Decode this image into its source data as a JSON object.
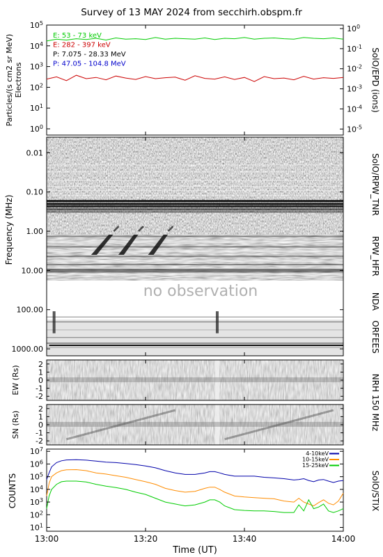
{
  "title": "Survey of 13 MAY 2024 from secchirh.obspm.fr",
  "x_axis": {
    "label": "Time (UT)",
    "ticks": [
      "13:00",
      "13:20",
      "13:40",
      "14:00"
    ]
  },
  "no_observation_text": "no observation",
  "panels": {
    "epd": {
      "left_label": [
        "Particles/(s cm2 sr MeV)",
        "Electrons"
      ],
      "right_label": "SolO/EPD (ions)"
    },
    "rpw": {
      "left_label": "Frequency (MHz)",
      "right_label_tnr": "SolO/RPW_TNR",
      "right_label_hfr": "RPW_HFR"
    },
    "nda": {
      "right_label": "NDA"
    },
    "orfees": {
      "right_label": "ORFEES"
    },
    "nrh": {
      "ew_label": "EW (Rs)",
      "sn_label": "SN (Rs)",
      "right_label": "NRH 150 MHz"
    },
    "stix": {
      "left_label": "COUNTS",
      "right_label": "SolO/STIX"
    }
  },
  "chart_data": [
    {
      "type": "line",
      "name": "epd",
      "ylog": true,
      "ylim": [
        0.5,
        100000
      ],
      "y_ticks": [
        {
          "base": "10",
          "exp": "5",
          "value": 100000
        },
        {
          "base": "10",
          "exp": "4",
          "value": 10000
        },
        {
          "base": "10",
          "exp": "3",
          "value": 1000
        },
        {
          "base": "10",
          "exp": "2",
          "value": 100
        },
        {
          "base": "10",
          "exp": "1",
          "value": 10
        },
        {
          "base": "10",
          "exp": "0",
          "value": 1
        }
      ],
      "y2_ticks": [
        {
          "base": "10",
          "exp": "0",
          "value": 1
        },
        {
          "base": "10",
          "exp": "-1",
          "value": 0.1
        },
        {
          "base": "10",
          "exp": "-2",
          "value": 0.01
        },
        {
          "base": "10",
          "exp": "-3",
          "value": 0.001
        },
        {
          "base": "10",
          "exp": "-4",
          "value": 0.0001
        },
        {
          "base": "10",
          "exp": "-5",
          "value": 1e-05
        }
      ],
      "legend": [
        {
          "text": "E: 53 - 73 keV",
          "color": "#00cc00"
        },
        {
          "text": "E: 282 - 397 keV",
          "color": "#cc0000"
        },
        {
          "text": "P: 7.075 - 28.33 MeV",
          "color": "#000000"
        },
        {
          "text": "P: 47.05 - 104.8 MeV",
          "color": "#0000cc"
        }
      ],
      "series": [
        {
          "color": "#00cc00",
          "x": [
            0,
            2,
            4,
            6,
            8,
            10,
            12,
            14,
            16,
            18,
            20,
            22,
            24,
            26,
            28,
            30,
            32,
            34,
            36,
            38,
            40,
            42,
            44,
            46,
            48,
            50,
            52,
            54,
            56,
            58,
            60
          ],
          "values": [
            17000,
            21000,
            19000,
            22000,
            20000,
            23000,
            19000,
            24000,
            21000,
            22000,
            20000,
            25000,
            21000,
            23000,
            22000,
            21000,
            24000,
            20000,
            23000,
            22000,
            25000,
            21000,
            23000,
            24000,
            22000,
            21000,
            25000,
            23000,
            22000,
            24000,
            21000
          ]
        },
        {
          "color": "#cc0000",
          "x": [
            0,
            2,
            4,
            6,
            8,
            10,
            12,
            14,
            16,
            18,
            20,
            22,
            24,
            26,
            28,
            30,
            32,
            34,
            36,
            38,
            40,
            42,
            44,
            46,
            48,
            50,
            52,
            54,
            56,
            58,
            60
          ],
          "values": [
            250,
            320,
            210,
            380,
            260,
            300,
            230,
            350,
            280,
            240,
            330,
            260,
            290,
            310,
            220,
            360,
            270,
            250,
            320,
            240,
            300,
            190,
            330,
            260,
            280,
            230,
            340,
            250,
            290,
            270,
            300
          ]
        }
      ]
    },
    {
      "type": "heatmap",
      "name": "rpw-nda-orfees",
      "ylog": true,
      "yreverse": true,
      "ylim": [
        0.004,
        1500
      ],
      "y_ticks": [
        {
          "text": "0.01",
          "value": 0.01
        },
        {
          "text": "0.10",
          "value": 0.1
        },
        {
          "text": "1.00",
          "value": 1
        },
        {
          "text": "10.00",
          "value": 10
        },
        {
          "text": "100.00",
          "value": 100
        },
        {
          "text": "1000.00",
          "value": 1000
        }
      ],
      "bands": {
        "tnr": [
          0.004,
          0.9
        ],
        "hfr": [
          0.9,
          13
        ],
        "nda": [
          13,
          70
        ],
        "orfees": [
          70,
          1500
        ]
      },
      "bursts": [
        {
          "t_start": 9.0,
          "t_end": 14.0,
          "f_high": 1.0,
          "f_low": 4.0
        },
        {
          "t_start": 14.5,
          "t_end": 19.0,
          "f_high": 1.0,
          "f_low": 4.0
        },
        {
          "t_start": 20.5,
          "t_end": 25.0,
          "f_high": 1.0,
          "f_low": 4.0
        }
      ],
      "orfees_events": [
        {
          "t": 1.5
        },
        {
          "t": 34.5
        }
      ]
    },
    {
      "type": "heatmap",
      "name": "nrh-ew",
      "ylim": [
        -2.5,
        2.5
      ],
      "y_ticks": [
        {
          "text": "2",
          "value": 2
        },
        {
          "text": "1",
          "value": 1
        },
        {
          "text": "0",
          "value": 0
        },
        {
          "text": "-1",
          "value": -1
        },
        {
          "text": "-2",
          "value": -2
        }
      ],
      "gap_t": 34.5
    },
    {
      "type": "heatmap",
      "name": "nrh-sn",
      "ylim": [
        -2.5,
        2.5
      ],
      "y_ticks": [
        {
          "text": "2",
          "value": 2
        },
        {
          "text": "1",
          "value": 1
        },
        {
          "text": "0",
          "value": 0
        },
        {
          "text": "-1",
          "value": -1
        },
        {
          "text": "-2",
          "value": -2
        }
      ],
      "gap_t": 34.5
    },
    {
      "type": "line",
      "name": "stix",
      "ylog": true,
      "ylim": [
        5,
        15000000
      ],
      "y_ticks": [
        {
          "base": "10",
          "exp": "7",
          "value": 10000000
        },
        {
          "base": "10",
          "exp": "6",
          "value": 1000000
        },
        {
          "base": "10",
          "exp": "5",
          "value": 100000
        },
        {
          "base": "10",
          "exp": "4",
          "value": 10000
        },
        {
          "base": "10",
          "exp": "3",
          "value": 1000
        },
        {
          "base": "10",
          "exp": "2",
          "value": 100
        },
        {
          "base": "10",
          "exp": "1",
          "value": 10
        }
      ],
      "legend": [
        {
          "text": "4-10keV",
          "color": "#0000aa"
        },
        {
          "text": "10-15keV",
          "color": "#ff8c00"
        },
        {
          "text": "15-25keV",
          "color": "#00cc00"
        }
      ],
      "series": [
        {
          "name": "4-10keV",
          "color": "#0000aa",
          "x": [
            0,
            0.5,
            1,
            2,
            3,
            4,
            6,
            8,
            10,
            12,
            14,
            16,
            18,
            20,
            22,
            24,
            26,
            28,
            30,
            32,
            33,
            34,
            35,
            36,
            38,
            40,
            42,
            44,
            46,
            48,
            50,
            51,
            52,
            53,
            54,
            55,
            56,
            57,
            58,
            59,
            60
          ],
          "values": [
            60000,
            200000,
            600000,
            1300000,
            1800000,
            2100000,
            2200000,
            2000000,
            1700000,
            1400000,
            1300000,
            1100000,
            900000,
            700000,
            500000,
            300000,
            200000,
            150000,
            150000,
            200000,
            250000,
            250000,
            200000,
            150000,
            110000,
            110000,
            110000,
            90000,
            80000,
            70000,
            55000,
            60000,
            70000,
            50000,
            40000,
            55000,
            60000,
            45000,
            35000,
            45000,
            50000
          ]
        },
        {
          "name": "10-15keV",
          "color": "#ff8c00",
          "x": [
            0,
            0.5,
            1,
            2,
            3,
            4,
            6,
            8,
            10,
            12,
            14,
            16,
            18,
            20,
            22,
            24,
            26,
            28,
            30,
            32,
            33,
            34,
            35,
            36,
            38,
            40,
            42,
            44,
            46,
            48,
            50,
            51,
            52,
            53,
            54,
            55,
            56,
            57,
            58,
            59,
            60
          ],
          "values": [
            3000,
            30000,
            100000,
            200000,
            300000,
            350000,
            360000,
            300000,
            200000,
            160000,
            120000,
            90000,
            60000,
            40000,
            25000,
            12000,
            8000,
            6000,
            7000,
            12000,
            15000,
            15000,
            10000,
            6000,
            3000,
            2500,
            2200,
            2000,
            1800,
            1200,
            1000,
            2000,
            1000,
            700,
            500,
            900,
            1500,
            800,
            600,
            1200,
            5000
          ]
        },
        {
          "name": "15-25keV",
          "color": "#00cc00",
          "x": [
            0,
            0.5,
            1,
            2,
            3,
            4,
            6,
            8,
            10,
            12,
            14,
            16,
            18,
            20,
            22,
            24,
            26,
            28,
            30,
            32,
            33,
            34,
            35,
            36,
            38,
            40,
            42,
            44,
            46,
            48,
            50,
            51,
            52,
            53,
            54,
            55,
            56,
            57,
            58,
            59,
            60
          ],
          "values": [
            300,
            3000,
            10000,
            25000,
            40000,
            45000,
            45000,
            38000,
            25000,
            18000,
            14000,
            10000,
            6000,
            4000,
            2000,
            1000,
            700,
            500,
            600,
            1000,
            1500,
            1500,
            1000,
            500,
            250,
            220,
            200,
            200,
            180,
            150,
            150,
            600,
            200,
            1500,
            300,
            400,
            700,
            200,
            150,
            200,
            300
          ]
        }
      ]
    }
  ]
}
